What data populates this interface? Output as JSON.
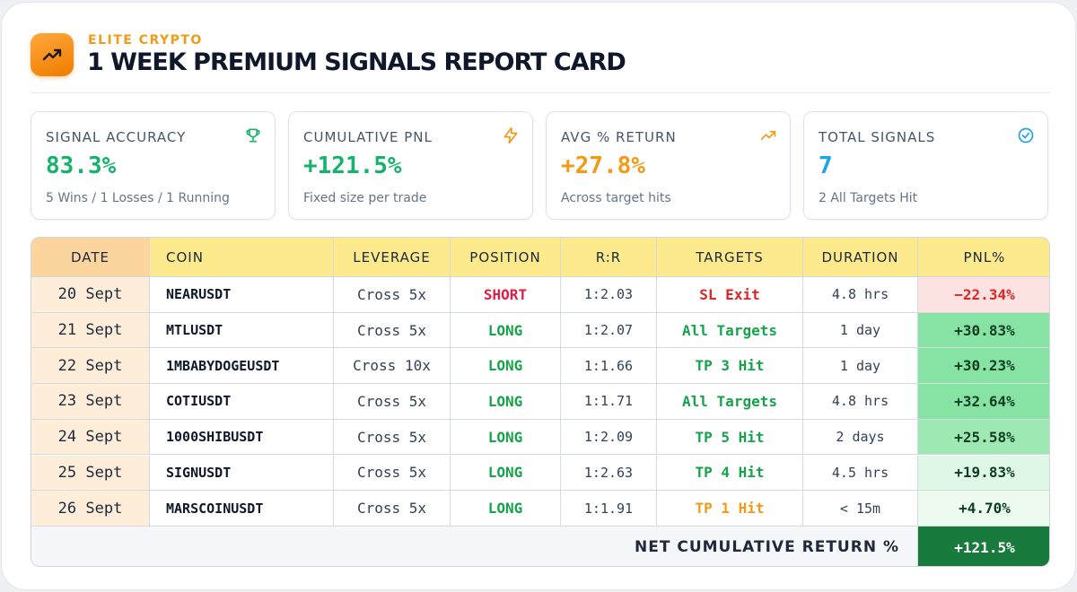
{
  "header": {
    "brand": "ELITE CRYPTO",
    "title": "1 WEEK PREMIUM SIGNALS REPORT CARD",
    "logo_icon": "trending-up-icon"
  },
  "stats": [
    {
      "label": "SIGNAL ACCURACY",
      "value": "83.3%",
      "sub": "5 Wins / 1 Losses / 1 Running",
      "icon": "trophy-icon",
      "color": "#15b36b"
    },
    {
      "label": "CUMULATIVE PNL",
      "value": "+121.5%",
      "sub": "Fixed size per trade",
      "icon": "lightning-icon",
      "color": "#15b36b"
    },
    {
      "label": "AVG % RETURN",
      "value": "+27.8%",
      "sub": "Across target hits",
      "icon": "trending-up-icon",
      "color": "#f29a16"
    },
    {
      "label": "TOTAL SIGNALS",
      "value": "7",
      "sub": "2 All Targets Hit",
      "icon": "check-circle-icon",
      "color": "#1aa3e8"
    }
  ],
  "table": {
    "headers": [
      "DATE",
      "COIN",
      "LEVERAGE",
      "POSITION",
      "R:R",
      "TARGETS",
      "DURATION",
      "PNL%"
    ],
    "rows": [
      {
        "date": "20 Sept",
        "coin": "NEARUSDT",
        "leverage": "Cross 5x",
        "position": "SHORT",
        "rr": "1:2.03",
        "targets": "SL Exit",
        "duration": "4.8 hrs",
        "pnl": "−22.34%",
        "position_color": "#e11d48",
        "target_color": "#dc2626",
        "pnl_bg": "#fde2e2",
        "pnl_color": "#dc2626"
      },
      {
        "date": "21 Sept",
        "coin": "MTLUSDT",
        "leverage": "Cross 5x",
        "position": "LONG",
        "rr": "1:2.07",
        "targets": "All Targets",
        "duration": "1 day",
        "pnl": "+30.83%",
        "position_color": "#16a34a",
        "target_color": "#16a34a",
        "pnl_bg": "#86e3a4",
        "pnl_color": "#0f3d22"
      },
      {
        "date": "22 Sept",
        "coin": "1MBABYDOGEUSDT",
        "leverage": "Cross 10x",
        "position": "LONG",
        "rr": "1:1.66",
        "targets": "TP 3 Hit",
        "duration": "1 day",
        "pnl": "+30.23%",
        "position_color": "#16a34a",
        "target_color": "#16a34a",
        "pnl_bg": "#86e3a4",
        "pnl_color": "#0f3d22"
      },
      {
        "date": "23 Sept",
        "coin": "COTIUSDT",
        "leverage": "Cross 5x",
        "position": "LONG",
        "rr": "1:1.71",
        "targets": "All Targets",
        "duration": "4.8 hrs",
        "pnl": "+32.64%",
        "position_color": "#16a34a",
        "target_color": "#16a34a",
        "pnl_bg": "#86e3a4",
        "pnl_color": "#0f3d22"
      },
      {
        "date": "24 Sept",
        "coin": "1000SHIBUSDT",
        "leverage": "Cross 5x",
        "position": "LONG",
        "rr": "1:2.09",
        "targets": "TP 5 Hit",
        "duration": "2 days",
        "pnl": "+25.58%",
        "position_color": "#16a34a",
        "target_color": "#16a34a",
        "pnl_bg": "#9ee8b4",
        "pnl_color": "#0f3d22"
      },
      {
        "date": "25 Sept",
        "coin": "SIGNUSDT",
        "leverage": "Cross 5x",
        "position": "LONG",
        "rr": "1:2.63",
        "targets": "TP 4 Hit",
        "duration": "4.5 hrs",
        "pnl": "+19.83%",
        "position_color": "#16a34a",
        "target_color": "#16a34a",
        "pnl_bg": "#dff7e6",
        "pnl_color": "#0f3d22"
      },
      {
        "date": "26 Sept",
        "coin": "MARSCOINUSDT",
        "leverage": "Cross 5x",
        "position": "LONG",
        "rr": "1:1.91",
        "targets": "TP 1 Hit",
        "duration": "< 15m",
        "pnl": "+4.70%",
        "position_color": "#16a34a",
        "target_color": "#f29a16",
        "pnl_bg": "#ecfaf0",
        "pnl_color": "#0f3d22"
      }
    ],
    "footer_label": "NET CUMULATIVE RETURN %",
    "footer_value": "+121.5%"
  }
}
